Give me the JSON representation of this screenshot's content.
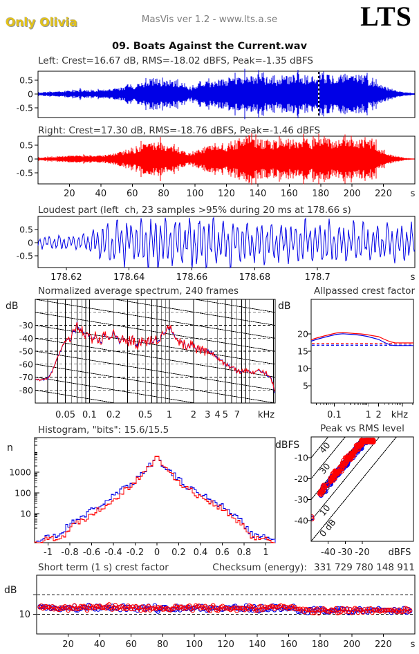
{
  "header": {
    "user": "Only Olivia",
    "app": "MasVis ver 1.2 - www.lts.a.se",
    "logo": "LTS",
    "filename": "09. Boats Against the Current.wav"
  },
  "colors": {
    "blue": "#0000e6",
    "red": "#ff0000",
    "axis": "#000000",
    "text": "#333333",
    "gray_text": "#7e7e7e",
    "gold": "#e3c219"
  },
  "chart_data": [
    {
      "id": "left_waveform",
      "type": "waveform",
      "channel": "left",
      "title": "Left: Crest=16.67 dB, RMS=-18.02 dBFS, Peak=-1.35 dBFS",
      "yticks": [
        0.5,
        0,
        -0.5
      ],
      "x_range_s": [
        0,
        240
      ],
      "loudest_marker_s": 178.66,
      "envelope": {
        "t": [
          0,
          5,
          15,
          22,
          26,
          27,
          28,
          35,
          42,
          50,
          56,
          62,
          66,
          70,
          75,
          80,
          88,
          94,
          97,
          100,
          104,
          112,
          120,
          126,
          132,
          140,
          148,
          153,
          158,
          165,
          172,
          176,
          180,
          186,
          192,
          200,
          207,
          212,
          216,
          220,
          226,
          232,
          236,
          240
        ],
        "a": [
          0.06,
          0.08,
          0.1,
          0.13,
          0.12,
          0.3,
          0.13,
          0.14,
          0.16,
          0.2,
          0.3,
          0.33,
          0.45,
          0.5,
          0.55,
          0.48,
          0.5,
          0.3,
          0.22,
          0.3,
          0.45,
          0.5,
          0.55,
          0.65,
          0.75,
          0.72,
          0.6,
          0.55,
          0.65,
          0.72,
          0.65,
          0.72,
          0.75,
          0.7,
          0.72,
          0.75,
          0.7,
          0.55,
          0.45,
          0.3,
          0.15,
          0.08,
          0.05,
          0.03
        ]
      }
    },
    {
      "id": "right_waveform",
      "type": "waveform",
      "channel": "right",
      "title": "Right: Crest=17.30 dB, RMS=-18.76 dBFS, Peak=-1.46 dBFS",
      "yticks": [
        0.5,
        0,
        -0.5
      ],
      "x_range_s": [
        0,
        240
      ],
      "xticks": [
        20,
        40,
        60,
        80,
        100,
        120,
        140,
        160,
        180,
        200,
        220
      ],
      "xunit": "s",
      "envelope": {
        "t": [
          0,
          5,
          15,
          22,
          27,
          35,
          42,
          50,
          56,
          62,
          66,
          70,
          74,
          78,
          82,
          88,
          94,
          97,
          100,
          104,
          110,
          116,
          122,
          128,
          134,
          142,
          150,
          156,
          162,
          168,
          174,
          180,
          186,
          192,
          198,
          204,
          210,
          215,
          219,
          224,
          229,
          234,
          240
        ],
        "a": [
          0.05,
          0.07,
          0.09,
          0.12,
          0.14,
          0.13,
          0.15,
          0.22,
          0.3,
          0.35,
          0.55,
          0.65,
          0.6,
          0.68,
          0.5,
          0.45,
          0.28,
          0.2,
          0.28,
          0.4,
          0.5,
          0.45,
          0.55,
          0.7,
          0.78,
          0.72,
          0.68,
          0.75,
          0.72,
          0.78,
          0.7,
          0.75,
          0.78,
          0.72,
          0.75,
          0.7,
          0.72,
          0.6,
          0.35,
          0.18,
          0.1,
          0.04,
          0.02
        ]
      }
    },
    {
      "id": "loudest_part",
      "type": "waveform",
      "title": "Loudest part (left  ch, 23 samples >95% during 20 ms at 178.66 s)",
      "yticks": [
        0.5,
        0,
        -0.5
      ],
      "x_range_s": [
        178.611,
        178.731
      ],
      "xticks": [
        178.62,
        178.64,
        178.66,
        178.68,
        178.7
      ],
      "xunit": "s",
      "envelope": {
        "t": [
          178.611,
          178.618,
          178.625,
          178.629,
          178.632,
          178.638,
          178.65,
          178.66,
          178.67,
          178.68,
          178.69,
          178.7,
          178.72,
          178.731
        ],
        "a": [
          0.18,
          0.25,
          0.22,
          0.45,
          0.6,
          0.72,
          0.78,
          0.8,
          0.75,
          0.7,
          0.62,
          0.66,
          0.6,
          0.55
        ]
      }
    },
    {
      "id": "spectrum",
      "type": "line",
      "title": "Normalized average spectrum, 240 frames",
      "ylabel": "dB",
      "yticks": [
        -30,
        -40,
        -50,
        -60,
        -70,
        -80
      ],
      "y_range": [
        -10,
        -90
      ],
      "grid_dashed_dB": [
        -20,
        -30,
        -40,
        -50,
        -60,
        -70,
        -80
      ],
      "grid_freqs": [
        0.03,
        0.04,
        0.05,
        0.06,
        0.07,
        0.08,
        0.09,
        0.1,
        0.2,
        0.3,
        0.4,
        0.5,
        0.6,
        0.7,
        0.8,
        0.9,
        1,
        2,
        3,
        4,
        5,
        6,
        7,
        8,
        9,
        10,
        20
      ],
      "xticks": [
        0.05,
        0.1,
        0.2,
        0.5,
        1,
        2,
        3,
        4,
        5,
        7
      ],
      "xunit": "kHz",
      "x_range_kHz": [
        0.021,
        21
      ],
      "diagonal_slope_dB_per_octave": 3,
      "f": [
        0.021,
        0.026,
        0.03,
        0.034,
        0.038,
        0.043,
        0.048,
        0.053,
        0.058,
        0.065,
        0.07,
        0.076,
        0.082,
        0.09,
        0.1,
        0.11,
        0.12,
        0.14,
        0.16,
        0.18,
        0.2,
        0.23,
        0.26,
        0.3,
        0.35,
        0.4,
        0.45,
        0.5,
        0.6,
        0.7,
        0.8,
        0.9,
        1.0,
        1.1,
        1.25,
        1.4,
        1.6,
        1.8,
        2.0,
        2.3,
        2.6,
        3.0,
        3.5,
        4.0,
        4.5,
        5.0,
        6.0,
        7.0,
        8.0,
        9.0,
        10.0,
        12.0,
        14.0,
        16.0,
        18.0,
        19.5,
        21.0
      ],
      "dB": [
        -72,
        -72,
        -71,
        -66,
        -58,
        -50,
        -44,
        -41,
        -39.5,
        -34,
        -30,
        -32,
        -35,
        -37,
        -38,
        -41,
        -39,
        -41,
        -38,
        -42,
        -37,
        -42,
        -40,
        -43,
        -41,
        -44,
        -42,
        -43,
        -42,
        -41,
        -38,
        -33,
        -31,
        -36,
        -40,
        -44,
        -46,
        -44,
        -46,
        -48,
        -50,
        -49,
        -52,
        -55,
        -58,
        -60,
        -63,
        -65,
        -66,
        -65,
        -66,
        -66,
        -65,
        -67,
        -70,
        -74,
        -86
      ]
    },
    {
      "id": "allpassed_crest",
      "type": "line",
      "title": "Allpassed crest factor",
      "ylabel": "dB",
      "yticks": [
        20,
        15,
        10,
        5
      ],
      "y_range": [
        0,
        30
      ],
      "xticks": [
        0.1,
        1,
        2
      ],
      "xunit": "kHz",
      "x_range_kHz": [
        0.021,
        21
      ],
      "f": [
        0.021,
        0.03,
        0.05,
        0.08,
        0.12,
        0.18,
        0.25,
        0.4,
        0.6,
        0.9,
        1.3,
        2,
        3,
        4.5,
        6,
        9,
        14,
        21
      ],
      "red": [
        18.3,
        18.8,
        19.4,
        19.9,
        20.3,
        20.4,
        20.3,
        20.1,
        20.0,
        19.8,
        19.5,
        19.2,
        18.4,
        17.7,
        17.45,
        17.4,
        17.4,
        17.4
      ],
      "blue": [
        17.9,
        18.4,
        19.0,
        19.5,
        19.9,
        20.05,
        19.95,
        19.8,
        19.6,
        19.3,
        18.9,
        18.4,
        17.5,
        16.8,
        16.65,
        16.65,
        16.65,
        16.65
      ],
      "dashed_red": 17.3,
      "dashed_blue": 16.75
    },
    {
      "id": "histogram",
      "type": "line",
      "title": "Histogram, \"bits\": 15.6/15.5",
      "ylabel": "n",
      "yticks": [
        1000,
        100,
        10
      ],
      "xticks": [
        -1,
        -0.8,
        -0.6,
        -0.4,
        -0.2,
        0,
        0.2,
        0.4,
        0.6,
        0.8,
        1
      ],
      "x": [
        -0.88,
        -0.84,
        -0.8,
        -0.74,
        -0.66,
        -0.58,
        -0.5,
        -0.42,
        -0.34,
        -0.26,
        -0.2,
        -0.14,
        -0.09,
        -0.05,
        -0.02,
        -0.008,
        0,
        0.008,
        0.02,
        0.05,
        0.09,
        0.14,
        0.2,
        0.26,
        0.34,
        0.42,
        0.5,
        0.58,
        0.66,
        0.74,
        0.8,
        0.85,
        0.88
      ],
      "n_blue": [
        1,
        2,
        3,
        5,
        9,
        16,
        28,
        55,
        110,
        230,
        400,
        800,
        1500,
        2600,
        4200,
        6000,
        46000,
        6000,
        4200,
        2600,
        1500,
        820,
        420,
        240,
        130,
        80,
        48,
        26,
        13,
        6,
        3,
        1.5,
        1
      ],
      "n_red": [
        0.8,
        1,
        2,
        3.5,
        6,
        11,
        20,
        40,
        85,
        190,
        340,
        700,
        1350,
        2400,
        4000,
        6000,
        46000,
        6000,
        4000,
        2400,
        1300,
        700,
        340,
        190,
        100,
        60,
        34,
        18,
        9,
        4,
        2,
        1,
        0.8
      ]
    },
    {
      "id": "peak_vs_rms",
      "type": "scatter",
      "title": "Peak vs RMS level",
      "ylabel": "dBFS",
      "yticks": [
        -10,
        -20,
        -30,
        -40
      ],
      "xticks": [
        -40,
        -30,
        -20
      ],
      "xunit": "dBFS",
      "diagonal_labels": [
        "40",
        "30",
        "20",
        "10",
        "0 dB"
      ],
      "scatter": {
        "count_per_channel": 240,
        "rms_range": [
          -45,
          -13.5
        ],
        "crest_mean_blue": 17.2,
        "crest_mean_red": 17.9,
        "crest_spread": 1.9,
        "peak_max": -1.5
      }
    },
    {
      "id": "short_term_crest",
      "type": "scatter",
      "title": "Short term (1 s) crest factor",
      "checksum_label": "Checksum (energy):",
      "checksum_value": "331 729 780 148 911",
      "ylabel": "dB",
      "yticks": [
        10
      ],
      "dashed": [
        10,
        20
      ],
      "xticks": [
        20,
        40,
        60,
        80,
        100,
        120,
        140,
        160,
        180,
        200,
        220
      ],
      "xunit": "s",
      "segments": [
        [
          0,
          62,
          13.4
        ],
        [
          62,
          166,
          13.1
        ],
        [
          166,
          238,
          11.9
        ]
      ],
      "spread": 1.7
    }
  ]
}
